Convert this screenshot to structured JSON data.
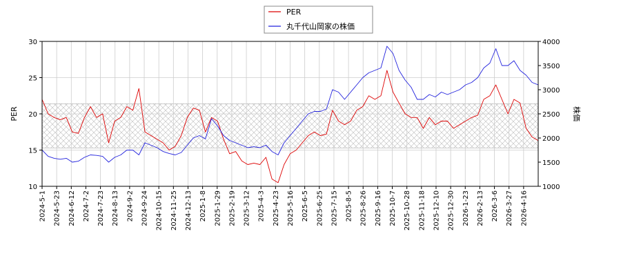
{
  "chart_data": {
    "type": "line",
    "legend": {
      "placement": "top-center",
      "entries": [
        {
          "label": "PER",
          "color": "#dd0000"
        },
        {
          "label": "丸千代山岡家の株価",
          "color": "#2222dd"
        }
      ]
    },
    "ylabel_left": "PER",
    "ylabel_right": "株価",
    "ylim_left": [
      10,
      30
    ],
    "ylim_right": [
      1000,
      4000
    ],
    "yticks_left": [
      "10",
      "15",
      "20",
      "25",
      "30"
    ],
    "yticks_right": [
      "1000",
      "1500",
      "2000",
      "2500",
      "3000",
      "3500",
      "4000"
    ],
    "x_tick_labels": [
      "2024-5-1",
      "2024-5-23",
      "2024-6-12",
      "2024-7-2",
      "2024-7-23",
      "2024-8-13",
      "2024-9-2",
      "2024-9-24",
      "2024-10-15",
      "2024-11-25",
      "2024-12-13",
      "2025-1-8",
      "2025-1-29",
      "2025-2-19",
      "2025-3-12",
      "2025-4-3",
      "2025-4-23",
      "2025-5-16",
      "2025-6-5",
      "2025-6-25",
      "2025-7-15",
      "2025-8-5",
      "2025-8-26",
      "2025-9-16",
      "2025-10-7",
      "2025-10-28",
      "2025-11-18",
      "2025-12-10",
      "2025-12-30",
      "2026-1-23",
      "2026-2-13",
      "2026-3-6",
      "2026-3-27",
      "2026-4-16"
    ],
    "grid": true,
    "shaded_band": {
      "axis": "left",
      "range": [
        15.3,
        21.4
      ]
    },
    "series": [
      {
        "name": "PER",
        "axis": "left",
        "color": "#dd0000",
        "values": [
          22.0,
          20.0,
          19.5,
          19.2,
          19.5,
          17.5,
          17.3,
          19.5,
          21.0,
          19.5,
          20.0,
          16.0,
          19.0,
          19.5,
          21.0,
          20.5,
          23.5,
          17.5,
          17.0,
          16.5,
          16.0,
          15.0,
          15.5,
          17.0,
          19.5,
          20.8,
          20.5,
          17.5,
          19.5,
          19.0,
          16.5,
          14.5,
          14.8,
          13.5,
          13.0,
          13.2,
          13.0,
          14.0,
          11.0,
          10.5,
          13.0,
          14.5,
          15.0,
          16.0,
          17.0,
          17.5,
          17.0,
          17.2,
          20.5,
          19.0,
          18.5,
          19.0,
          20.5,
          21.0,
          22.5,
          22.0,
          22.5,
          26.0,
          23.0,
          21.5,
          20.0,
          19.5,
          19.5,
          18.0,
          19.5,
          18.5,
          19.0,
          19.0,
          18.0,
          18.5,
          19.0,
          19.5,
          19.8,
          22.0,
          22.5,
          24.0,
          22.0,
          20.0,
          22.0,
          21.5,
          18.0,
          16.8,
          16.3
        ]
      },
      {
        "name": "丸千代山岡家の株価",
        "axis": "right",
        "color": "#2222dd",
        "values": [
          1750,
          1620,
          1580,
          1560,
          1580,
          1500,
          1520,
          1600,
          1650,
          1640,
          1620,
          1500,
          1600,
          1650,
          1750,
          1750,
          1650,
          1900,
          1850,
          1800,
          1720,
          1680,
          1650,
          1700,
          1850,
          2000,
          2050,
          1980,
          2400,
          2250,
          2050,
          1950,
          1900,
          1850,
          1800,
          1820,
          1800,
          1850,
          1720,
          1650,
          1900,
          2050,
          2200,
          2350,
          2500,
          2550,
          2550,
          2600,
          3000,
          2950,
          2800,
          2950,
          3100,
          3250,
          3350,
          3400,
          3450,
          3900,
          3750,
          3400,
          3200,
          3050,
          2800,
          2800,
          2900,
          2850,
          2950,
          2900,
          2950,
          3000,
          3100,
          3150,
          3250,
          3450,
          3550,
          3850,
          3500,
          3500,
          3600,
          3400,
          3300,
          3150,
          3100
        ]
      }
    ]
  }
}
